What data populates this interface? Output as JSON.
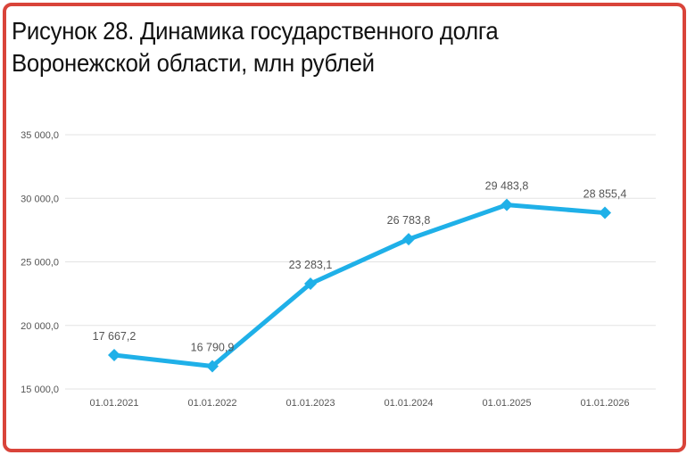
{
  "title_line1": "Рисунок 28. Динамика государственного долга",
  "title_line2": "Воронежской области, млн рублей",
  "colors": {
    "border": "#d9443a",
    "series": "#1fb0e8",
    "grid": "#e3e3e3"
  },
  "chart_data": {
    "type": "line",
    "title": "Рисунок 28. Динамика государственного долга Воронежской области, млн рублей",
    "x": [
      "01.01.2021",
      "01.01.2022",
      "01.01.2023",
      "01.01.2024",
      "01.01.2025",
      "01.01.2026"
    ],
    "series": [
      {
        "values": [
          17667.2,
          16790.9,
          23283.1,
          26783.8,
          29483.8,
          28855.4
        ],
        "labels": [
          "17 667,2",
          "16 790,9",
          "23 283,1",
          "26 783,8",
          "29 483,8",
          "28 855,4"
        ]
      }
    ],
    "ylim": [
      15000,
      35000
    ],
    "yticks": [
      15000,
      20000,
      25000,
      30000,
      35000
    ],
    "ytick_labels": [
      "15 000,0",
      "20 000,0",
      "25 000,0",
      "30 000,0",
      "35 000,0"
    ],
    "grid": true,
    "legend": "none"
  }
}
